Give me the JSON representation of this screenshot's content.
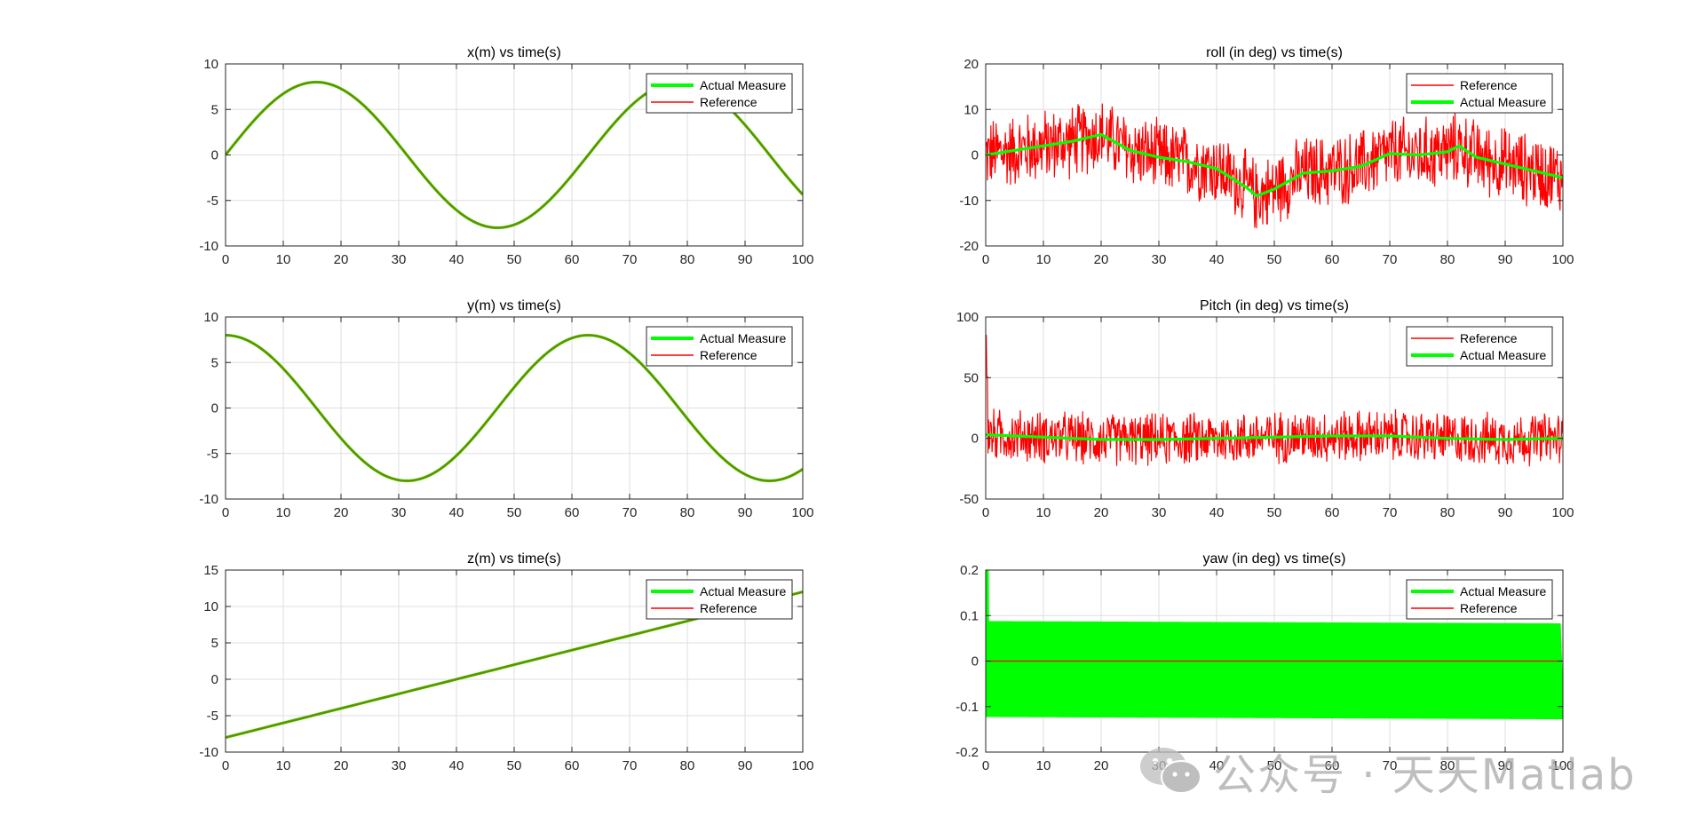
{
  "watermark": {
    "text": "公众号 · 天天Matlab",
    "icon": "wechat-icon"
  },
  "colors": {
    "actual": "#00ff00",
    "reference": "#ff0000",
    "overlap": "#808000",
    "axis": "#262626",
    "grid": "#dfdfdf"
  },
  "chart_data": [
    {
      "id": "x",
      "type": "line",
      "title": "x(m) vs time(s)",
      "xlabel": "",
      "ylabel": "",
      "xlim": [
        0,
        100
      ],
      "ylim": [
        -10,
        10
      ],
      "xticks": [
        0,
        10,
        20,
        30,
        40,
        50,
        60,
        70,
        80,
        90,
        100
      ],
      "yticks": [
        -10,
        -5,
        0,
        5,
        10
      ],
      "grid": true,
      "legend_location": "top-right",
      "signal": {
        "kind": "sine",
        "amplitude": 8,
        "period": 62.83,
        "phase": "sin",
        "sample_step": 0.5
      },
      "series": [
        {
          "name": "Actual Measure",
          "color": "#00ff00",
          "style": "thick",
          "x": [
            0,
            10,
            20,
            30,
            40,
            50,
            60,
            70,
            80,
            90,
            100
          ],
          "y": [
            0,
            6.7,
            7.6,
            1.1,
            -6.1,
            -7.9,
            -2.2,
            5.3,
            8.0,
            3.3,
            -4.4
          ]
        },
        {
          "name": "Reference",
          "color": "#ff0000",
          "style": "thin",
          "x": [
            0,
            10,
            20,
            30,
            40,
            50,
            60,
            70,
            80,
            90,
            100
          ],
          "y": [
            0,
            6.7,
            7.6,
            1.1,
            -6.1,
            -7.9,
            -2.2,
            5.3,
            8.0,
            3.3,
            -4.4
          ]
        }
      ]
    },
    {
      "id": "roll",
      "type": "line",
      "title": "roll (in deg) vs time(s)",
      "xlabel": "",
      "ylabel": "",
      "xlim": [
        0,
        100
      ],
      "ylim": [
        -20,
        20
      ],
      "xticks": [
        0,
        10,
        20,
        30,
        40,
        50,
        60,
        70,
        80,
        90,
        100
      ],
      "yticks": [
        -20,
        -10,
        0,
        10,
        20
      ],
      "grid": true,
      "legend_location": "top-right",
      "signal": {
        "kind": "noisy",
        "noise_amplitude": 9,
        "sample_step": 0.1
      },
      "series": [
        {
          "name": "Reference",
          "color": "#ff0000",
          "style": "thin",
          "noisy": true,
          "x": [
            0,
            5,
            10,
            15,
            20,
            25,
            30,
            35,
            40,
            45,
            47,
            50,
            55,
            60,
            65,
            70,
            75,
            80,
            82,
            85,
            90,
            95,
            100
          ],
          "y": [
            0,
            1,
            2,
            3,
            4.5,
            1,
            -0.5,
            -1.5,
            -3,
            -7,
            -9,
            -7.5,
            -4,
            -3.5,
            -2.5,
            0.3,
            0,
            0.7,
            2,
            -0.5,
            -2,
            -3.5,
            -5
          ]
        },
        {
          "name": "Actual Measure",
          "color": "#00ff00",
          "style": "thick",
          "x": [
            0,
            5,
            10,
            15,
            20,
            25,
            30,
            35,
            40,
            45,
            47,
            50,
            55,
            60,
            65,
            70,
            75,
            80,
            82,
            85,
            90,
            95,
            100
          ],
          "y": [
            0,
            1,
            2,
            3,
            4.5,
            1,
            -0.5,
            -1.5,
            -3,
            -7,
            -9,
            -7.5,
            -4,
            -3.5,
            -2.5,
            0.3,
            0,
            0.7,
            2,
            -0.5,
            -2,
            -3.5,
            -5
          ]
        }
      ]
    },
    {
      "id": "y",
      "type": "line",
      "title": "y(m) vs time(s)",
      "xlabel": "",
      "ylabel": "",
      "xlim": [
        0,
        100
      ],
      "ylim": [
        -10,
        10
      ],
      "xticks": [
        0,
        10,
        20,
        30,
        40,
        50,
        60,
        70,
        80,
        90,
        100
      ],
      "yticks": [
        -10,
        -5,
        0,
        5,
        10
      ],
      "grid": true,
      "legend_location": "top-right",
      "signal": {
        "kind": "sine",
        "amplitude": 8,
        "period": 62.83,
        "phase": "cos",
        "sample_step": 0.5
      },
      "series": [
        {
          "name": "Actual Measure",
          "color": "#00ff00",
          "style": "thick",
          "x": [
            0,
            10,
            20,
            30,
            40,
            50,
            60,
            70,
            80,
            90,
            100
          ],
          "y": [
            8,
            4.3,
            -3.3,
            -8.0,
            -5.2,
            2.3,
            7.7,
            6.0,
            -1.2,
            -7.5,
            -6.7
          ]
        },
        {
          "name": "Reference",
          "color": "#ff0000",
          "style": "thin",
          "x": [
            0,
            10,
            20,
            30,
            40,
            50,
            60,
            70,
            80,
            90,
            100
          ],
          "y": [
            8,
            4.3,
            -3.3,
            -8.0,
            -5.2,
            2.3,
            7.7,
            6.0,
            -1.2,
            -7.5,
            -6.7
          ]
        }
      ]
    },
    {
      "id": "pitch",
      "type": "line",
      "title": "Pitch (in deg) vs time(s)",
      "xlabel": "",
      "ylabel": "",
      "xlim": [
        0,
        100
      ],
      "ylim": [
        -50,
        100
      ],
      "xticks": [
        0,
        10,
        20,
        30,
        40,
        50,
        60,
        70,
        80,
        90,
        100
      ],
      "yticks": [
        -50,
        0,
        50,
        100
      ],
      "grid": true,
      "legend_location": "top-right",
      "signal": {
        "kind": "noisy",
        "noise_amplitude": 24,
        "initial_spike": 85,
        "sample_step": 0.1
      },
      "series": [
        {
          "name": "Reference",
          "color": "#ff0000",
          "style": "thin",
          "noisy": true,
          "x": [
            0,
            10,
            20,
            30,
            40,
            50,
            60,
            70,
            80,
            90,
            100
          ],
          "y": [
            3,
            1,
            -1,
            -1,
            0,
            1,
            2,
            2,
            0,
            -1,
            0
          ]
        },
        {
          "name": "Actual Measure",
          "color": "#00ff00",
          "style": "thick",
          "x": [
            0,
            10,
            20,
            30,
            40,
            50,
            60,
            70,
            80,
            90,
            100
          ],
          "y": [
            3,
            1,
            -1,
            -1,
            0,
            1,
            2,
            2,
            0,
            -1,
            0
          ]
        }
      ]
    },
    {
      "id": "z",
      "type": "line",
      "title": "z(m) vs time(s)",
      "xlabel": "",
      "ylabel": "",
      "xlim": [
        0,
        100
      ],
      "ylim": [
        -10,
        15
      ],
      "xticks": [
        0,
        10,
        20,
        30,
        40,
        50,
        60,
        70,
        80,
        90,
        100
      ],
      "yticks": [
        -10,
        -5,
        0,
        5,
        10,
        15
      ],
      "grid": true,
      "legend_location": "top-right",
      "signal": {
        "kind": "linear",
        "sample_step": 1
      },
      "series": [
        {
          "name": "Actual Measure",
          "color": "#00ff00",
          "style": "thick",
          "x": [
            0,
            100
          ],
          "y": [
            -8,
            12
          ]
        },
        {
          "name": "Reference",
          "color": "#ff0000",
          "style": "thin",
          "x": [
            0,
            100
          ],
          "y": [
            -8,
            12
          ]
        }
      ]
    },
    {
      "id": "yaw",
      "type": "line",
      "title": "yaw (in deg) vs time(s)",
      "xlabel": "",
      "ylabel": "",
      "xlim": [
        0,
        100
      ],
      "ylim": [
        -0.2,
        0.2
      ],
      "xticks": [
        0,
        10,
        20,
        30,
        40,
        50,
        60,
        70,
        80,
        90,
        100
      ],
      "yticks": [
        -0.2,
        -0.1,
        0,
        0.1,
        0.2
      ],
      "grid": true,
      "legend_location": "top-right",
      "signal": {
        "kind": "band",
        "initial_spike": 0.2,
        "sample_step": 1
      },
      "series": [
        {
          "name": "Actual Measure",
          "color": "#00ff00",
          "style": "thick",
          "band": true,
          "x": [
            0,
            100
          ],
          "upper": [
            0.085,
            0.08
          ],
          "lower": [
            -0.12,
            -0.125
          ],
          "y": [
            0,
            0
          ]
        },
        {
          "name": "Reference",
          "color": "#ff0000",
          "style": "thin",
          "x": [
            0,
            100
          ],
          "y": [
            0,
            0
          ]
        }
      ]
    }
  ]
}
